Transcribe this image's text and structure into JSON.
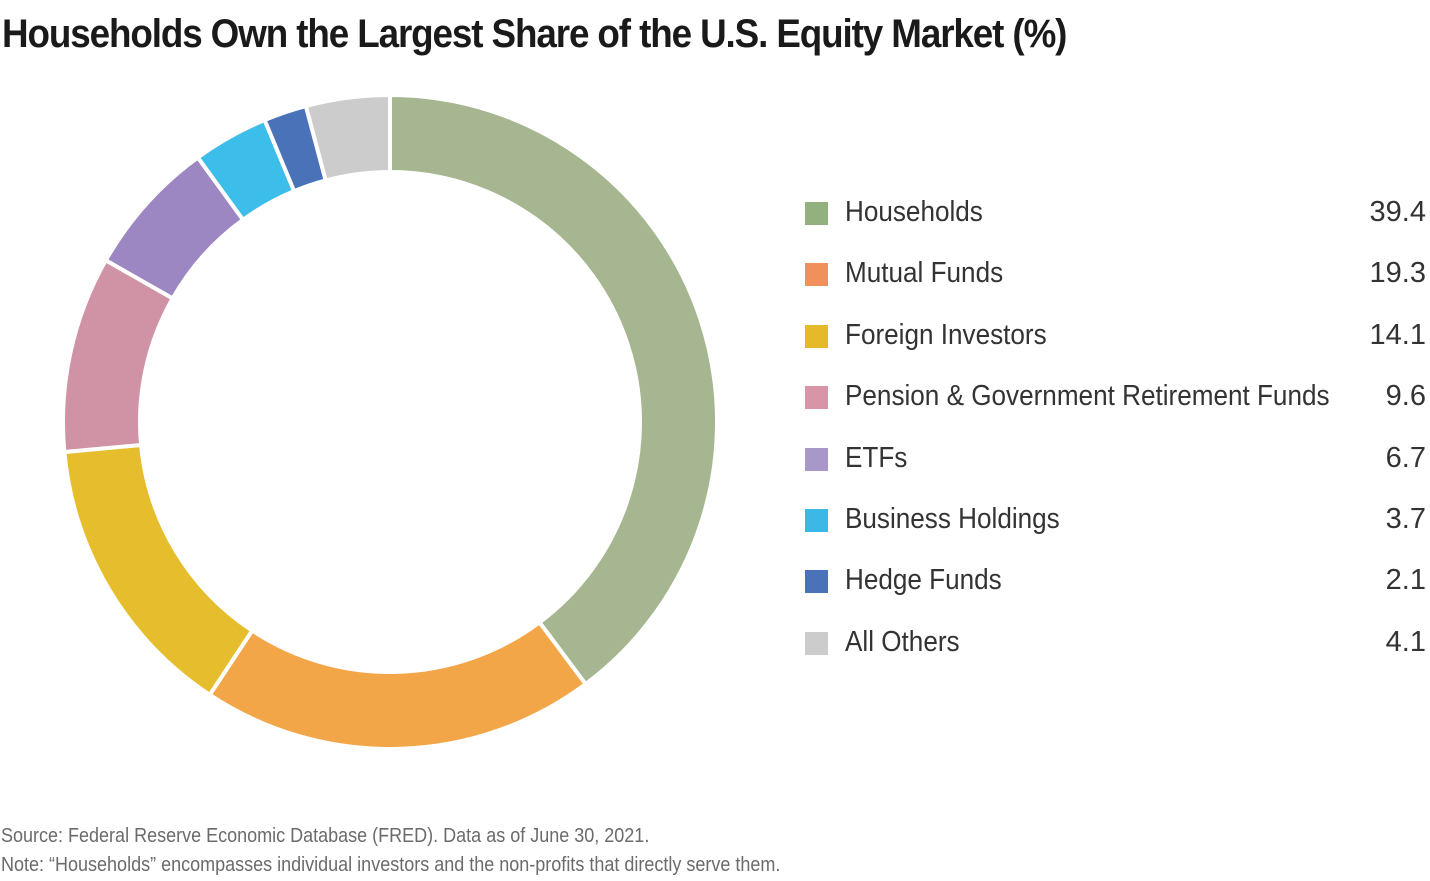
{
  "title": "Households Own the Largest Share of the U.S. Equity Market (%)",
  "source": "Source: Federal Reserve Economic Database (FRED). Data as of June 30, 2021.",
  "note": "Note: “Households” encompasses individual investors and the non-profits that directly serve them.",
  "chart_data": {
    "type": "pie",
    "variant": "donut",
    "title": "Households Own the Largest Share of the U.S. Equity Market (%)",
    "legend_position": "right",
    "categories": [
      "Households",
      "Mutual Funds",
      "Foreign Investors",
      "Pension & Government Retirement Funds",
      "ETFs",
      "Business Holdings",
      "Hedge Funds",
      "All Others"
    ],
    "values": [
      39.4,
      19.3,
      14.1,
      9.6,
      6.7,
      3.7,
      2.1,
      4.1
    ],
    "value_labels": [
      "39.4",
      "19.3",
      "14.1",
      "9.6",
      "6.7",
      "3.7",
      "2.1",
      "4.1"
    ],
    "legend_colors": [
      "#93b07f",
      "#f0905a",
      "#e6b92a",
      "#d895a8",
      "#a898c9",
      "#3cb8e6",
      "#4a72b8",
      "#cccccc"
    ],
    "ring_order": [
      0,
      1,
      2,
      3,
      4,
      5,
      6,
      7
    ],
    "ring_colors": [
      "#a5b690",
      "#f3a647",
      "#e6bd2c",
      "#d092a5",
      "#9d87c2",
      "#3dbde9",
      "#4a72b8",
      "#cccccc"
    ]
  }
}
